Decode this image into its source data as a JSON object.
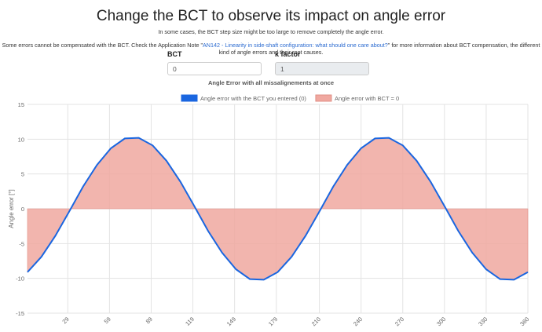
{
  "header": {
    "title": "Change the BCT to observe its impact on angle error",
    "subtitle": "In some cases, the BCT step size might be too large to remove completely the angle error.",
    "note_before": "Some errors cannot be compensated with the BCT. Check the Application Note \"",
    "note_link": "AN142 - Linearity in side-shaft configuration: what should one care about?",
    "note_after": "\" for more information about BCT compensation, the different kind of angle errors and their root causes."
  },
  "form": {
    "fields": [
      {
        "label": "BCT",
        "value": "0"
      },
      {
        "label": "k factor",
        "value": "1"
      }
    ]
  },
  "chart_data": {
    "type": "line",
    "title": "Angle Error with all missalignements at once",
    "y_label": "Angle error [°]",
    "x": [
      0,
      10,
      20,
      30,
      40,
      50,
      60,
      70,
      80,
      90,
      100,
      110,
      120,
      130,
      140,
      150,
      160,
      170,
      180,
      190,
      200,
      210,
      220,
      230,
      240,
      250,
      260,
      270,
      280,
      290,
      300,
      310,
      320,
      330,
      340,
      350,
      360
    ],
    "series": [
      {
        "name": "Angle error with the BCT you entered (0)",
        "color": "#1a66e0",
        "fill": false,
        "values": [
          -9.1,
          -6.9,
          -3.9,
          -0.4,
          3.2,
          6.3,
          8.7,
          10.1,
          10.2,
          9.1,
          6.9,
          3.9,
          0.4,
          -3.2,
          -6.3,
          -8.7,
          -10.1,
          -10.2,
          -9.1,
          -6.9,
          -3.9,
          -0.4,
          3.2,
          6.3,
          8.7,
          10.1,
          10.2,
          9.1,
          6.9,
          3.9,
          0.4,
          -3.2,
          -6.3,
          -8.7,
          -10.1,
          -10.2,
          -9.1
        ]
      },
      {
        "name": "Angle error with BCT = 0",
        "color": "#f0a8a0",
        "fill": true,
        "values": [
          -9.1,
          -6.9,
          -3.9,
          -0.4,
          3.2,
          6.3,
          8.7,
          10.1,
          10.2,
          9.1,
          6.9,
          3.9,
          0.4,
          -3.2,
          -6.3,
          -8.7,
          -10.1,
          -10.2,
          -9.1,
          -6.9,
          -3.9,
          -0.4,
          3.2,
          6.3,
          8.7,
          10.1,
          10.2,
          9.1,
          6.9,
          3.9,
          0.4,
          -3.2,
          -6.3,
          -8.7,
          -10.1,
          -10.2,
          -9.1
        ]
      }
    ],
    "xlim": [
      0,
      360
    ],
    "xticks": [
      29,
      59,
      89,
      119,
      149,
      179,
      210,
      240,
      270,
      300,
      330,
      360
    ],
    "ylim": [
      -15,
      15
    ],
    "yticks": [
      -15,
      -10,
      -5,
      0,
      5,
      10,
      15
    ],
    "grid": true
  }
}
